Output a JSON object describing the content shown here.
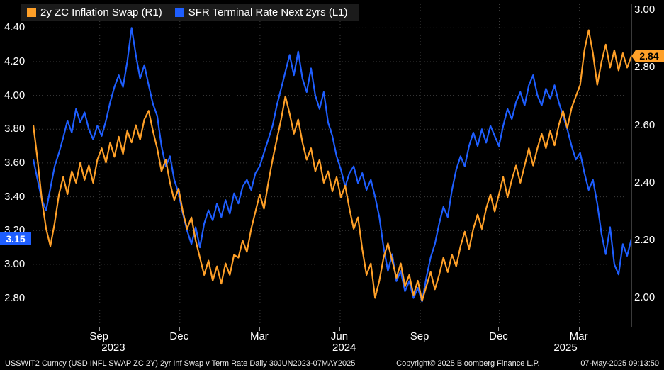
{
  "footer": {
    "left": "USSWIT2 Curncy (USD INFL SWAP ZC 2Y) 2yr Inf Swap v Term Rate  Daily 30JUN2023-07MAY2025",
    "center": "Copyright© 2025 Bloomberg Finance L.P.",
    "right": "07-May-2025 09:13:50"
  },
  "chart_data": {
    "type": "line",
    "title": "2yr Inf Swap v Term Rate",
    "frequency": "Daily",
    "x_start": "30JUN2023",
    "x_end": "07MAY2025",
    "grid": "dotted",
    "legend_position": "top-left",
    "x_ticks": [
      {
        "label": "Sep",
        "pos": 0.111
      },
      {
        "label": "Dec",
        "pos": 0.245
      },
      {
        "label": "Mar",
        "pos": 0.379
      },
      {
        "label": "Jun",
        "pos": 0.513
      },
      {
        "label": "Sep",
        "pos": 0.647
      },
      {
        "label": "Dec",
        "pos": 0.779
      },
      {
        "label": "Mar",
        "pos": 0.913
      }
    ],
    "year_labels": [
      {
        "label": "2023",
        "pos": 0.135
      },
      {
        "label": "2024",
        "pos": 0.521
      },
      {
        "label": "2025",
        "pos": 0.891
      }
    ],
    "left_axis": {
      "ticks": [
        2.8,
        3.0,
        3.2,
        3.4,
        3.6,
        3.8,
        4.0,
        4.2,
        4.4
      ],
      "range": [
        2.63,
        4.54
      ],
      "series": "SFR Terminal Rate Next 2yrs (L1)"
    },
    "right_axis": {
      "ticks": [
        2.0,
        2.2,
        2.4,
        2.6,
        2.8,
        3.0
      ],
      "range": [
        1.9,
        3.02
      ],
      "series": "2y ZC Inflation Swap (R1)"
    },
    "left_badge": {
      "label": "3.15",
      "value": 3.15,
      "color": "#1E5EFF"
    },
    "right_badge": {
      "label": "2.84",
      "value": 2.84,
      "color": "#FFA028"
    },
    "series": [
      {
        "id": "inflation-swap",
        "name": "2y ZC Inflation Swap (R1)",
        "axis": "right",
        "color": "#FFA028",
        "values": [
          2.6,
          2.48,
          2.34,
          2.24,
          2.18,
          2.26,
          2.36,
          2.42,
          2.36,
          2.44,
          2.4,
          2.47,
          2.41,
          2.46,
          2.4,
          2.48,
          2.52,
          2.47,
          2.54,
          2.49,
          2.56,
          2.5,
          2.58,
          2.54,
          2.6,
          2.55,
          2.62,
          2.65,
          2.58,
          2.52,
          2.44,
          2.48,
          2.4,
          2.34,
          2.38,
          2.3,
          2.24,
          2.28,
          2.2,
          2.14,
          2.08,
          2.13,
          2.06,
          2.11,
          2.05,
          2.12,
          2.08,
          2.15,
          2.14,
          2.2,
          2.16,
          2.24,
          2.3,
          2.36,
          2.31,
          2.4,
          2.48,
          2.55,
          2.62,
          2.7,
          2.64,
          2.57,
          2.62,
          2.54,
          2.48,
          2.52,
          2.44,
          2.48,
          2.4,
          2.44,
          2.37,
          2.42,
          2.35,
          2.39,
          2.31,
          2.24,
          2.28,
          2.17,
          2.08,
          2.12,
          2.0,
          2.06,
          2.14,
          2.19,
          2.13,
          2.07,
          2.12,
          2.04,
          2.08,
          2.01,
          2.06,
          1.99,
          2.04,
          2.09,
          2.03,
          2.08,
          2.14,
          2.09,
          2.15,
          2.11,
          2.18,
          2.23,
          2.17,
          2.24,
          2.29,
          2.24,
          2.31,
          2.36,
          2.3,
          2.36,
          2.42,
          2.35,
          2.41,
          2.46,
          2.4,
          2.46,
          2.52,
          2.46,
          2.52,
          2.57,
          2.52,
          2.58,
          2.53,
          2.6,
          2.65,
          2.59,
          2.66,
          2.7,
          2.74,
          2.86,
          2.93,
          2.85,
          2.74,
          2.82,
          2.88,
          2.8,
          2.86,
          2.79,
          2.85,
          2.8,
          2.84
        ]
      },
      {
        "id": "sfr-terminal-rate",
        "name": "SFR Terminal Rate Next 2yrs (L1)",
        "axis": "left",
        "color": "#1E5EFF",
        "values": [
          3.62,
          3.5,
          3.38,
          3.32,
          3.45,
          3.58,
          3.66,
          3.75,
          3.85,
          3.78,
          3.92,
          3.84,
          3.9,
          3.8,
          3.74,
          3.82,
          3.76,
          3.85,
          3.96,
          4.05,
          4.12,
          4.05,
          4.2,
          4.4,
          4.24,
          4.1,
          4.18,
          4.06,
          3.95,
          3.88,
          3.7,
          3.58,
          3.64,
          3.5,
          3.42,
          3.3,
          3.2,
          3.12,
          3.22,
          3.1,
          3.24,
          3.32,
          3.26,
          3.36,
          3.28,
          3.38,
          3.3,
          3.42,
          3.36,
          3.46,
          3.5,
          3.44,
          3.54,
          3.58,
          3.66,
          3.74,
          3.82,
          3.94,
          4.04,
          4.14,
          4.24,
          4.12,
          4.26,
          4.1,
          4.02,
          4.16,
          4.0,
          3.92,
          4.02,
          3.84,
          3.76,
          3.64,
          3.56,
          3.46,
          3.54,
          3.58,
          3.48,
          3.54,
          3.44,
          3.5,
          3.4,
          3.28,
          3.1,
          2.96,
          3.06,
          2.9,
          2.96,
          2.84,
          2.9,
          2.8,
          2.86,
          2.78,
          2.92,
          3.04,
          3.12,
          3.24,
          3.34,
          3.28,
          3.44,
          3.56,
          3.64,
          3.58,
          3.7,
          3.78,
          3.7,
          3.8,
          3.72,
          3.82,
          3.76,
          3.7,
          3.82,
          3.92,
          3.86,
          3.96,
          4.02,
          3.94,
          4.06,
          4.12,
          4.0,
          3.94,
          4.04,
          3.98,
          4.06,
          3.96,
          3.88,
          3.8,
          3.7,
          3.62,
          3.66,
          3.54,
          3.44,
          3.5,
          3.36,
          3.18,
          3.06,
          3.22,
          3.0,
          2.94,
          3.12,
          3.05,
          3.15
        ]
      }
    ]
  }
}
